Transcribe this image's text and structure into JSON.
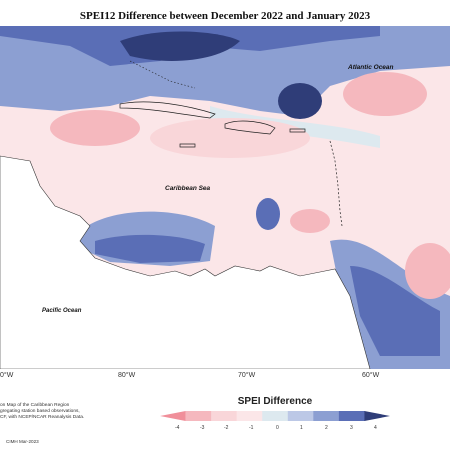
{
  "title": "SPEI12 Difference between December 2022 and January 2023",
  "labels": {
    "atlantic": "Atlantic Ocean",
    "caribbean": "Caribbean Sea",
    "pacific": "Pacific Ocean"
  },
  "longitudes": [
    "0°W",
    "80°W",
    "70°W",
    "60°W"
  ],
  "legend": {
    "title": "SPEI Difference",
    "ticks": [
      "-4",
      "-3",
      "-2",
      "-1",
      "0",
      "1",
      "2",
      "3",
      "4"
    ],
    "colors": [
      "#f08f9a",
      "#f5b8be",
      "#f9d6d9",
      "#fbe6e8",
      "#dde9ef",
      "#bcc8e6",
      "#8c9fd2",
      "#5a6eb6",
      "#2f3d78"
    ]
  },
  "caption": "on Map of the Caribbean Region\ngregating station based observations,\nCF, with NCEP/NCAR Reanalysis Data.",
  "credit": "CIMH Mar-2023"
}
